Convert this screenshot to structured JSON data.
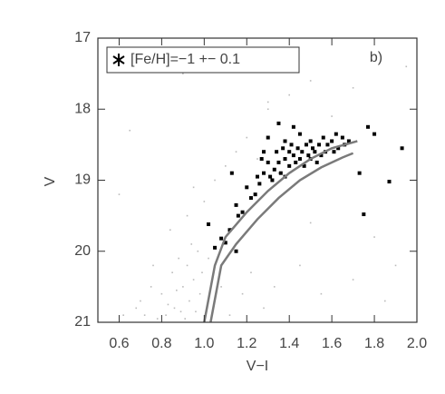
{
  "chart_data": {
    "type": "scatter",
    "annotation": "b)",
    "xlabel": "V−I",
    "ylabel": "V",
    "xlim": [
      0.5,
      2.0
    ],
    "ylim": [
      21,
      17
    ],
    "xticks": [
      0.6,
      0.8,
      {
        "value": 1,
        "label": "1.0"
      },
      1.2,
      1.4,
      1.6,
      1.8,
      {
        "value": 2,
        "label": "2.0"
      }
    ],
    "yticks": [
      17,
      18,
      19,
      20,
      21
    ],
    "series": [
      {
        "kind": "points",
        "color": "#bbbbbb",
        "x": [
          0.62,
          0.7,
          0.75,
          0.8,
          0.82,
          0.85,
          0.86,
          0.88,
          0.9,
          0.91,
          0.92,
          0.93,
          0.94,
          0.95,
          0.96,
          0.97,
          0.98,
          0.99,
          0.78,
          0.83,
          0.87,
          0.89,
          0.72,
          0.68,
          0.76,
          0.84,
          0.92,
          1.0,
          1.05,
          1.1,
          1.15,
          1.2,
          1.25,
          1.3,
          1.35,
          1.4,
          1.5,
          1.6,
          1.7,
          1.8,
          1.9,
          0.6,
          0.65,
          0.9,
          1.1,
          1.3,
          1.5,
          1.7,
          1.85,
          1.95,
          0.95,
          1.02,
          1.08,
          1.12,
          1.18,
          1.22,
          1.28,
          1.33,
          1.45,
          1.55
        ],
        "values": [
          20.9,
          20.7,
          20.5,
          20.6,
          20.9,
          20.3,
          20.8,
          20.1,
          20.5,
          20.95,
          20.2,
          20.7,
          19.9,
          20.4,
          20.85,
          20.0,
          20.6,
          20.3,
          20.95,
          20.75,
          20.55,
          20.85,
          20.9,
          20.8,
          20.2,
          19.7,
          19.5,
          19.3,
          19.0,
          18.8,
          18.6,
          18.4,
          18.7,
          18.0,
          18.9,
          17.8,
          17.6,
          18.1,
          17.7,
          19.8,
          20.2,
          19.2,
          18.3,
          17.5,
          17.3,
          17.9,
          19.6,
          20.4,
          20.7,
          17.4,
          19.1,
          20.1,
          20.5,
          20.9,
          20.6,
          20.3,
          20.8,
          20.5,
          20.2,
          20.6
        ]
      },
      {
        "kind": "points",
        "name": "[Fe/H]=−1 +− 0.1",
        "color": "#000000",
        "x": [
          1.02,
          1.05,
          1.08,
          1.1,
          1.12,
          1.13,
          1.15,
          1.15,
          1.16,
          1.18,
          1.2,
          1.22,
          1.24,
          1.25,
          1.26,
          1.27,
          1.28,
          1.3,
          1.3,
          1.31,
          1.32,
          1.33,
          1.34,
          1.35,
          1.35,
          1.36,
          1.37,
          1.38,
          1.38,
          1.4,
          1.4,
          1.41,
          1.42,
          1.42,
          1.43,
          1.44,
          1.45,
          1.46,
          1.47,
          1.48,
          1.49,
          1.5,
          1.5,
          1.51,
          1.52,
          1.53,
          1.54,
          1.55,
          1.56,
          1.57,
          1.58,
          1.6,
          1.61,
          1.62,
          1.63,
          1.65,
          1.66,
          1.68,
          1.73,
          1.75,
          1.77,
          1.8,
          1.87,
          1.93,
          1.45,
          1.38,
          1.28
        ],
        "values": [
          19.62,
          19.95,
          19.82,
          19.88,
          19.7,
          18.9,
          19.35,
          20.0,
          19.5,
          19.45,
          19.1,
          19.25,
          19.2,
          18.95,
          19.05,
          18.7,
          18.9,
          18.4,
          18.75,
          18.95,
          19.0,
          18.85,
          18.6,
          18.75,
          18.2,
          18.9,
          18.55,
          18.7,
          18.95,
          18.6,
          18.8,
          18.5,
          18.65,
          18.25,
          18.75,
          18.55,
          18.7,
          18.6,
          18.8,
          18.5,
          18.65,
          18.45,
          18.7,
          18.55,
          18.6,
          18.75,
          18.5,
          18.65,
          18.4,
          18.6,
          18.5,
          18.45,
          18.6,
          18.35,
          18.55,
          18.4,
          18.5,
          18.45,
          18.9,
          19.48,
          18.25,
          18.35,
          19.02,
          18.55,
          18.35,
          18.45,
          18.6
        ]
      },
      {
        "kind": "line",
        "color": "#7a7a7a",
        "x": [
          1.0,
          1.05,
          1.1,
          1.2,
          1.3,
          1.4,
          1.5,
          1.6,
          1.72
        ],
        "values": [
          21.0,
          20.2,
          19.8,
          19.45,
          19.15,
          18.9,
          18.7,
          18.55,
          18.45
        ]
      },
      {
        "kind": "line",
        "color": "#7a7a7a",
        "x": [
          1.03,
          1.08,
          1.15,
          1.25,
          1.35,
          1.45,
          1.55,
          1.65,
          1.7
        ],
        "values": [
          21.0,
          20.2,
          19.9,
          19.55,
          19.25,
          19.0,
          18.82,
          18.68,
          18.62
        ]
      }
    ]
  }
}
